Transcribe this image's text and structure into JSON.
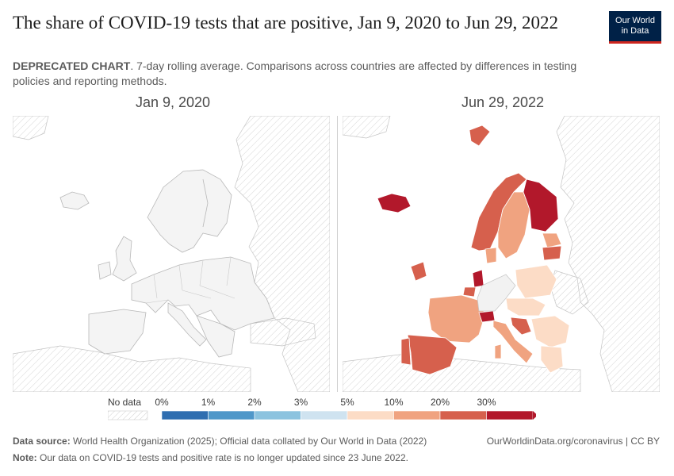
{
  "title": "The share of COVID-19 tests that are positive, Jan 9, 2020 to Jun 29, 2022",
  "subtitle": {
    "bold": "DEPRECATED CHART",
    "rest": ". 7-day rolling average. Comparisons across countries are affected by differences in testing policies and reporting methods."
  },
  "logo": {
    "line1": "Our World",
    "line2": "in Data"
  },
  "panels": [
    {
      "date": "Jan 9, 2020",
      "has_data": false
    },
    {
      "date": "Jun 29, 2022",
      "has_data": true
    }
  ],
  "legend": {
    "no_data_label": "No data",
    "thresholds": [
      "0%",
      "1%",
      "2%",
      "3%",
      "5%",
      "10%",
      "20%",
      "30%"
    ],
    "bin_colors": [
      "#2f6eb0",
      "#4f97c9",
      "#8cc3df",
      "#cfe3f0",
      "#fcdcc6",
      "#f0a380",
      "#d6604d",
      "#b2182b"
    ],
    "no_data_color": "#eeeeee"
  },
  "colors": {
    "country_no_data": "#f2f2f2",
    "border": "#b5b5b5",
    "hatch": "#cfcfcf",
    "title": "#1d1d1d",
    "logo_bg": "#002147",
    "logo_accent": "#ce261e"
  },
  "countries_jun_2022": [
    {
      "name": "Iceland",
      "bin": 7
    },
    {
      "name": "Norway",
      "bin": 6
    },
    {
      "name": "Sweden",
      "bin": 5
    },
    {
      "name": "Finland",
      "bin": 7
    },
    {
      "name": "Ireland",
      "bin": 6
    },
    {
      "name": "Denmark",
      "bin": 5
    },
    {
      "name": "Latvia",
      "bin": 6
    },
    {
      "name": "Netherlands",
      "bin": 7
    },
    {
      "name": "Belgium",
      "bin": 6
    },
    {
      "name": "France",
      "bin": 5
    },
    {
      "name": "Switzerland",
      "bin": 7
    },
    {
      "name": "Spain",
      "bin": 6
    },
    {
      "name": "Portugal",
      "bin": 6
    },
    {
      "name": "Italy",
      "bin": 5
    },
    {
      "name": "Poland",
      "bin": 4
    },
    {
      "name": "Greece",
      "bin": 4
    },
    {
      "name": "Croatia",
      "bin": 6
    },
    {
      "name": "Svalbard",
      "bin": 6
    }
  ],
  "footer": {
    "source_label": "Data source:",
    "source_text": "World Health Organization (2025); Official data collated by Our World in Data (2022)",
    "url": "OurWorldinData.org/coronavirus | CC BY",
    "note_label": "Note:",
    "note_text": "Our data on COVID-19 tests and positive rate is no longer updated since 23 June 2022."
  }
}
